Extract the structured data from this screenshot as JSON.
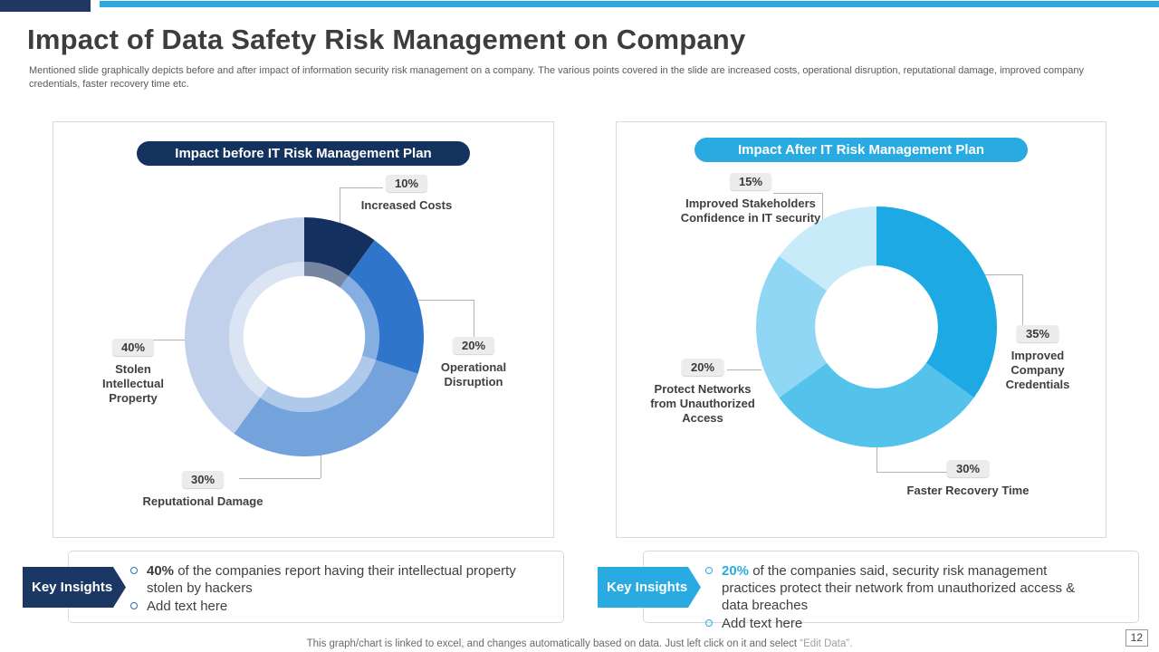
{
  "accents": {
    "navy": "#1F3864",
    "cyan": "#29ABE2",
    "badge_gray": "#ECECEC"
  },
  "header": {
    "title": "Impact of Data Safety Risk Management on Company",
    "subtitle": "Mentioned slide graphically depicts before and after impact of information security risk management on a company. The various points covered in the slide are increased costs, operational disruption, reputational damage, improved company credentials, faster recovery time etc."
  },
  "chart_data": [
    {
      "type": "pie",
      "subtype": "donut",
      "title": "Impact before IT Risk Management Plan",
      "direction": "clockwise",
      "start_angle_deg": 0,
      "legend_position": "none",
      "slices": [
        {
          "label": "Increased Costs",
          "value": 10,
          "color": "#14305F"
        },
        {
          "label": "Operational Disruption",
          "value": 20,
          "color": "#2E75CB"
        },
        {
          "label": "Reputational Damage",
          "value": 30,
          "color": "#74A3DB"
        },
        {
          "label": "Stolen Intellectual Property",
          "value": 40,
          "color": "#C1D1EB"
        }
      ]
    },
    {
      "type": "pie",
      "subtype": "donut",
      "title": "Impact After IT Risk Management Plan",
      "direction": "clockwise",
      "start_angle_deg": 0,
      "legend_position": "none",
      "slices": [
        {
          "label": "Improved Company Credentials",
          "value": 35,
          "color": "#1DA9E4"
        },
        {
          "label": "Faster Recovery Time",
          "value": 30,
          "color": "#55C2EC"
        },
        {
          "label": "Protect Networks from Unauthorized Access",
          "value": 20,
          "color": "#8FD7F5"
        },
        {
          "label": "Improved Stakeholders Confidence in IT security",
          "value": 15,
          "color": "#C8EBFA"
        }
      ]
    }
  ],
  "chart1": {
    "header": "Impact before IT Risk Management Plan",
    "labels": {
      "increased_costs": {
        "pct": "10%",
        "text": "Increased Costs"
      },
      "operational_disruption": {
        "pct": "20%",
        "text": "Operational Disruption"
      },
      "stolen_ip": {
        "pct": "40%",
        "text": "Stolen Intellectual Property"
      },
      "reputational_damage": {
        "pct": "30%",
        "text": "Reputational Damage"
      }
    }
  },
  "chart2": {
    "header": "Impact After IT Risk Management Plan",
    "labels": {
      "stakeholders": {
        "pct": "15%",
        "text": "Improved Stakeholders Confidence in IT security"
      },
      "credentials": {
        "pct": "35%",
        "text": "Improved Company Credentials"
      },
      "protect": {
        "pct": "20%",
        "text": "Protect Networks from Unauthorized Access"
      },
      "recovery": {
        "pct": "30%",
        "text": "Faster Recovery Time"
      }
    }
  },
  "insights_left": {
    "banner": "Key Insights",
    "b1_bold": "40%",
    "b1_rest": " of the companies report having their intellectual property stolen by hackers",
    "b2": "Add text here"
  },
  "insights_right": {
    "banner": "Key Insights",
    "b1_bold": "20%",
    "b1_rest": " of the companies said, security risk management practices protect their network from unauthorized access & data breaches",
    "b2": "Add text here"
  },
  "footer": {
    "text": "This graph/chart is linked to excel,  and changes automatically based on data. Just left click on it and select ",
    "quote": "“Edit Data”.",
    "page_number": "12"
  }
}
